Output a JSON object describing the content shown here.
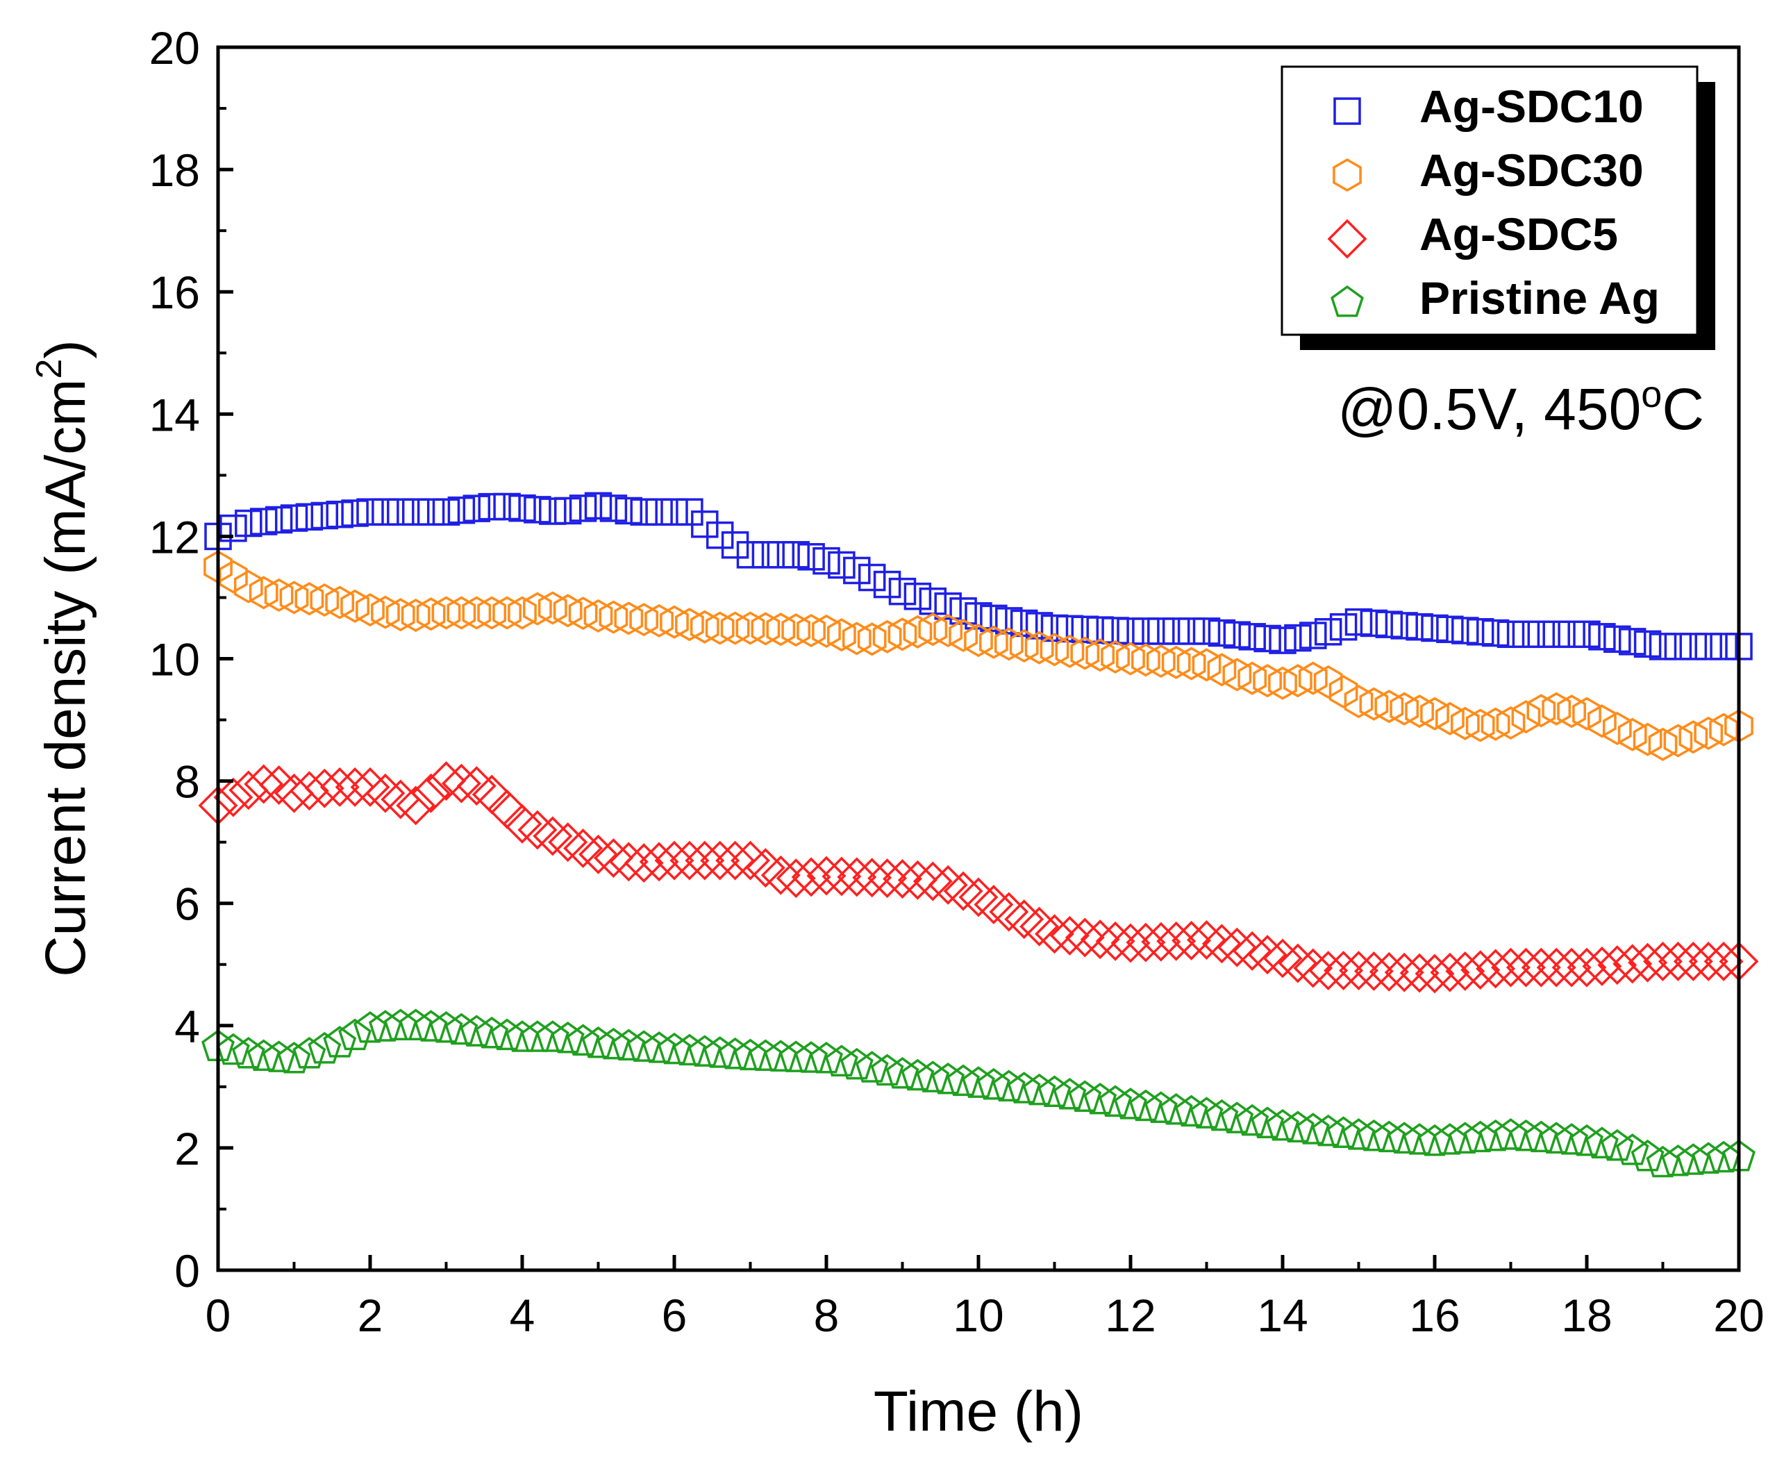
{
  "chart_data": {
    "type": "scatter",
    "title": "",
    "xlabel": "Time (h)",
    "ylabel_main": "Current density (mA/cm",
    "ylabel_sup": "2",
    "ylabel_close": ")",
    "xlim": [
      0,
      20
    ],
    "ylim": [
      0,
      20
    ],
    "xticks": [
      "0",
      "2",
      "4",
      "6",
      "8",
      "10",
      "12",
      "14",
      "16",
      "18",
      "20"
    ],
    "yticks": [
      "0",
      "2",
      "4",
      "6",
      "8",
      "10",
      "12",
      "14",
      "16",
      "18",
      "20"
    ],
    "annotation": {
      "main": "@0.5V, 450",
      "sup": "o",
      "tail": "C"
    },
    "legend_position": "top-right",
    "series": [
      {
        "name": "Ag-SDC10",
        "marker": "square",
        "color": "#1f1fe6",
        "keypoints": [
          [
            0,
            12.0
          ],
          [
            0.3,
            12.2
          ],
          [
            1,
            12.3
          ],
          [
            2,
            12.4
          ],
          [
            3,
            12.4
          ],
          [
            3.7,
            12.5
          ],
          [
            4.5,
            12.4
          ],
          [
            5,
            12.5
          ],
          [
            5.5,
            12.4
          ],
          [
            6.2,
            12.4
          ],
          [
            6.5,
            12.1
          ],
          [
            7,
            11.7
          ],
          [
            7.7,
            11.7
          ],
          [
            8.3,
            11.5
          ],
          [
            9,
            11.1
          ],
          [
            10,
            10.7
          ],
          [
            11,
            10.5
          ],
          [
            12,
            10.45
          ],
          [
            13,
            10.45
          ],
          [
            14,
            10.3
          ],
          [
            14.5,
            10.4
          ],
          [
            15,
            10.6
          ],
          [
            15.5,
            10.55
          ],
          [
            16,
            10.5
          ],
          [
            17,
            10.4
          ],
          [
            18,
            10.4
          ],
          [
            18.5,
            10.3
          ],
          [
            19,
            10.2
          ],
          [
            20,
            10.2
          ]
        ]
      },
      {
        "name": "Ag-SDC30",
        "marker": "hexagon",
        "color": "#ff8c1a",
        "keypoints": [
          [
            0,
            11.5
          ],
          [
            0.5,
            11.1
          ],
          [
            1,
            11.0
          ],
          [
            1.5,
            10.95
          ],
          [
            2,
            10.8
          ],
          [
            2.5,
            10.7
          ],
          [
            3,
            10.75
          ],
          [
            4,
            10.75
          ],
          [
            4.3,
            10.85
          ],
          [
            5,
            10.7
          ],
          [
            6,
            10.6
          ],
          [
            6.5,
            10.5
          ],
          [
            7,
            10.5
          ],
          [
            8,
            10.45
          ],
          [
            8.5,
            10.3
          ],
          [
            9,
            10.4
          ],
          [
            9.5,
            10.5
          ],
          [
            10,
            10.3
          ],
          [
            11,
            10.15
          ],
          [
            12,
            10.0
          ],
          [
            13,
            9.9
          ],
          [
            13.5,
            9.7
          ],
          [
            14,
            9.6
          ],
          [
            14.5,
            9.7
          ],
          [
            15,
            9.3
          ],
          [
            15.5,
            9.2
          ],
          [
            16,
            9.1
          ],
          [
            16.5,
            8.9
          ],
          [
            17,
            8.95
          ],
          [
            17.5,
            9.2
          ],
          [
            18,
            9.1
          ],
          [
            18.5,
            8.8
          ],
          [
            19,
            8.6
          ],
          [
            19.5,
            8.75
          ],
          [
            20,
            8.9
          ]
        ]
      },
      {
        "name": "Ag-SDC5",
        "marker": "diamond",
        "color": "#ff2020",
        "keypoints": [
          [
            0,
            7.6
          ],
          [
            0.3,
            7.8
          ],
          [
            0.7,
            8.0
          ],
          [
            1,
            7.8
          ],
          [
            1.5,
            7.9
          ],
          [
            2,
            7.9
          ],
          [
            2.4,
            7.7
          ],
          [
            2.6,
            7.6
          ],
          [
            3,
            8.0
          ],
          [
            3.5,
            7.9
          ],
          [
            4,
            7.3
          ],
          [
            4.5,
            7.05
          ],
          [
            5,
            6.8
          ],
          [
            5.5,
            6.65
          ],
          [
            6,
            6.7
          ],
          [
            7,
            6.7
          ],
          [
            7.5,
            6.4
          ],
          [
            8,
            6.45
          ],
          [
            9,
            6.4
          ],
          [
            9.5,
            6.35
          ],
          [
            10,
            6.1
          ],
          [
            10.5,
            5.8
          ],
          [
            11,
            5.5
          ],
          [
            12,
            5.35
          ],
          [
            13,
            5.4
          ],
          [
            14,
            5.1
          ],
          [
            14.5,
            4.9
          ],
          [
            15,
            4.9
          ],
          [
            16,
            4.85
          ],
          [
            17,
            4.95
          ],
          [
            18,
            4.95
          ],
          [
            19,
            5.05
          ],
          [
            20,
            5.05
          ]
        ]
      },
      {
        "name": "Pristine Ag",
        "marker": "pentagon",
        "color": "#1fa01f",
        "keypoints": [
          [
            0,
            3.65
          ],
          [
            0.5,
            3.5
          ],
          [
            1,
            3.45
          ],
          [
            1.5,
            3.65
          ],
          [
            2,
            3.95
          ],
          [
            2.5,
            4.0
          ],
          [
            3,
            3.95
          ],
          [
            4,
            3.8
          ],
          [
            4.5,
            3.8
          ],
          [
            5,
            3.7
          ],
          [
            6,
            3.6
          ],
          [
            7,
            3.5
          ],
          [
            8,
            3.45
          ],
          [
            9,
            3.2
          ],
          [
            10,
            3.05
          ],
          [
            11,
            2.9
          ],
          [
            12,
            2.7
          ],
          [
            13,
            2.55
          ],
          [
            14,
            2.35
          ],
          [
            15,
            2.2
          ],
          [
            16,
            2.1
          ],
          [
            17,
            2.2
          ],
          [
            18,
            2.1
          ],
          [
            18.5,
            2.0
          ],
          [
            19,
            1.75
          ],
          [
            19.5,
            1.8
          ],
          [
            20,
            1.85
          ]
        ]
      }
    ]
  }
}
